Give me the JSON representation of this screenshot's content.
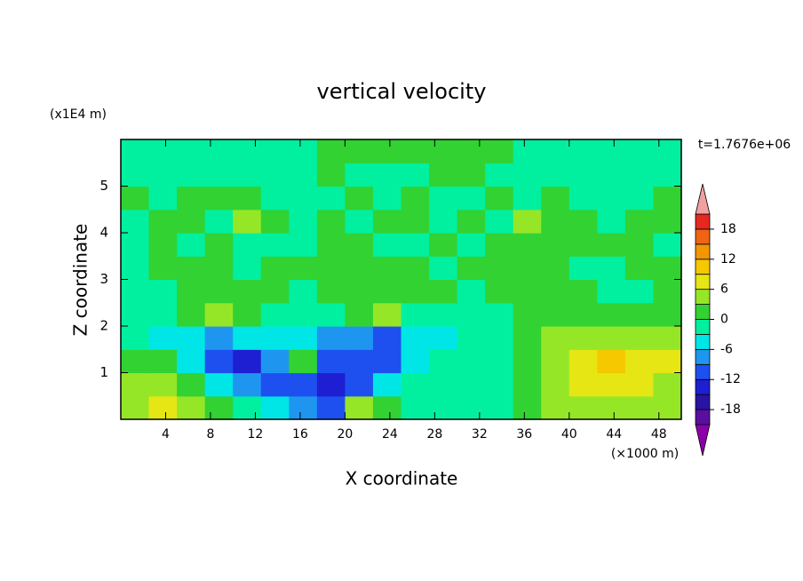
{
  "chart_data": {
    "type": "contour",
    "title": "vertical velocity",
    "x_label": "X coordinate",
    "y_label": "Z coordinate",
    "x_unit": "(×1000 m)",
    "y_unit": "(x1E4 m)",
    "annotation": "t=1.7676e+06",
    "xlim": [
      0,
      50
    ],
    "ylim": [
      0,
      6
    ],
    "xticks": [
      4,
      8,
      12,
      16,
      20,
      24,
      28,
      32,
      36,
      40,
      44,
      48
    ],
    "yticks": [
      1,
      2,
      3,
      4,
      5
    ],
    "x": [
      1.25,
      3.75,
      6.25,
      8.75,
      11.25,
      13.75,
      16.25,
      18.75,
      21.25,
      23.75,
      26.25,
      28.75,
      31.25,
      33.75,
      36.25,
      38.75,
      41.25,
      43.75,
      46.25,
      48.75
    ],
    "y": [
      0.25,
      0.75,
      1.25,
      1.75,
      2.25,
      2.75,
      3.25,
      3.75,
      4.25,
      4.75,
      5.25,
      5.75
    ],
    "z": [
      [
        4.5,
        7.5,
        4.5,
        1.5,
        -1,
        -4.5,
        -7.5,
        -10.5,
        4.5,
        1.5,
        -1,
        -1,
        -1,
        -1,
        1.5,
        4.5,
        4.5,
        4.5,
        4.5,
        4.5
      ],
      [
        4.5,
        4.5,
        1.5,
        -4.5,
        -7.5,
        -10.5,
        -10.5,
        -13.5,
        -10.5,
        -4.5,
        -1,
        -1,
        -1,
        -1,
        1.5,
        4.5,
        7.5,
        7.5,
        7.5,
        4.5
      ],
      [
        1.5,
        1.5,
        -4.5,
        -10.5,
        -13.5,
        -7.5,
        1.5,
        -10.5,
        -10.5,
        -10.5,
        -4.5,
        -1,
        -1,
        -1,
        1.5,
        4.5,
        7.5,
        10.5,
        7.5,
        7.5
      ],
      [
        -1,
        -4.5,
        -4.5,
        -7.5,
        -4.5,
        -4.5,
        -4.5,
        -7.5,
        -7.5,
        -10.5,
        -4.5,
        -4.5,
        -1,
        -1,
        1.5,
        4.5,
        4.5,
        4.5,
        4.5,
        4.5
      ],
      [
        -1,
        -1,
        1.5,
        4.5,
        1.5,
        -1,
        -1,
        -1,
        1.5,
        4.5,
        -1,
        -1,
        -1,
        -1,
        1.5,
        1.5,
        1.5,
        1.5,
        1.5,
        1.5
      ],
      [
        -1,
        -1,
        1.5,
        1.5,
        1.5,
        1.5,
        -1,
        1.5,
        1.5,
        1.5,
        1.5,
        1.5,
        -1,
        1.5,
        1.5,
        1.5,
        1.5,
        -1,
        -1,
        1.5
      ],
      [
        -1,
        1.5,
        1.5,
        1.5,
        -1,
        1.5,
        1.5,
        1.5,
        1.5,
        1.5,
        1.5,
        -1,
        1.5,
        1.5,
        1.5,
        1.5,
        -1,
        -1,
        1.5,
        1.5
      ],
      [
        -1,
        1.5,
        -1,
        1.5,
        -1,
        -1,
        -1,
        1.5,
        1.5,
        -1,
        -1,
        1.5,
        -1,
        1.5,
        1.5,
        1.5,
        1.5,
        1.5,
        1.5,
        -1
      ],
      [
        -1,
        1.5,
        1.5,
        -1,
        4.5,
        1.5,
        -1,
        1.5,
        -1,
        1.5,
        1.5,
        -1,
        1.5,
        -1,
        4.5,
        1.5,
        1.5,
        -1,
        1.5,
        1.5
      ],
      [
        1.5,
        -1,
        1.5,
        1.5,
        1.5,
        -1,
        -1,
        -1,
        1.5,
        -1,
        1.5,
        -1,
        -1,
        1.5,
        -1,
        1.5,
        -1,
        -1,
        -1,
        1.5
      ],
      [
        -1,
        -1,
        -1,
        -1,
        -1,
        -1,
        -1,
        1.5,
        -1,
        -1,
        -1,
        1.5,
        1.5,
        -1,
        -1,
        -1,
        -1,
        -1,
        -1,
        -1
      ],
      [
        -1,
        -1,
        -1,
        -1,
        -1,
        -1,
        -1,
        1.5,
        1.5,
        1.5,
        1.5,
        1.5,
        1.5,
        1.5,
        -1,
        -1,
        -1,
        -1,
        -1,
        -1
      ]
    ],
    "levels": [
      -21,
      -18,
      -15,
      -12,
      -9,
      -6,
      -3,
      0,
      3,
      6,
      9,
      12,
      15,
      18,
      21
    ],
    "colors": [
      "#8c00aa",
      "#5a0fa0",
      "#2814a0",
      "#1e1ed2",
      "#1e50f0",
      "#1e96f0",
      "#00e6e6",
      "#00f0a0",
      "#32d232",
      "#96e628",
      "#e6e614",
      "#f5c800",
      "#f59600",
      "#f06414",
      "#e6281e",
      "#f0a0a0"
    ],
    "colorbar_ticks": [
      18,
      12,
      6,
      0,
      -6,
      -12,
      -18
    ]
  }
}
